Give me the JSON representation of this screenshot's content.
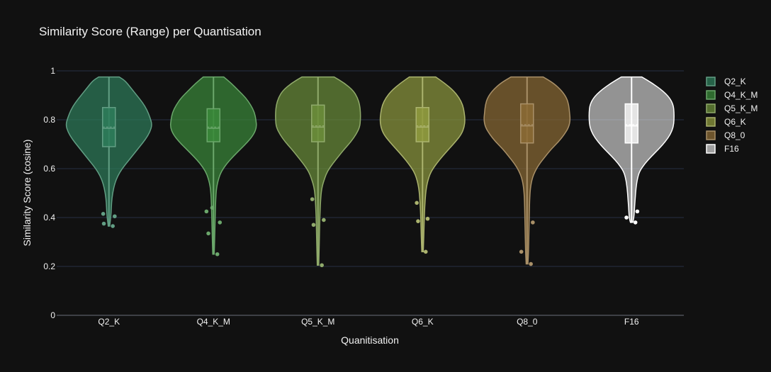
{
  "chart_data": {
    "type": "violin",
    "title": "Similarity Score (Range) per Quantisation",
    "xlabel": "Quanitisation",
    "ylabel": "Similarity Score (cosine)",
    "ylim": [
      0,
      1
    ],
    "yticks": [
      "0",
      "0.2",
      "0.4",
      "0.6",
      "0.8",
      "1"
    ],
    "ytick_values": [
      0,
      0.2,
      0.4,
      0.6,
      0.8,
      1
    ],
    "grid": true,
    "legend_position": "right",
    "categories": [
      "Q2_K",
      "Q4_K_M",
      "Q5_K_M",
      "Q6_K",
      "Q8_0",
      "F16"
    ],
    "series": [
      {
        "name": "Q2_K",
        "color": "#2e7d5b",
        "min": 0.365,
        "max": 0.975,
        "q1": 0.69,
        "median": 0.765,
        "q3": 0.85,
        "mean": 0.77,
        "density": [
          [
            0.975,
            0.14
          ],
          [
            0.96,
            0.22
          ],
          [
            0.93,
            0.3
          ],
          [
            0.9,
            0.38
          ],
          [
            0.87,
            0.46
          ],
          [
            0.84,
            0.52
          ],
          [
            0.81,
            0.56
          ],
          [
            0.78,
            0.59
          ],
          [
            0.75,
            0.56
          ],
          [
            0.72,
            0.5
          ],
          [
            0.69,
            0.42
          ],
          [
            0.66,
            0.34
          ],
          [
            0.63,
            0.26
          ],
          [
            0.6,
            0.18
          ],
          [
            0.57,
            0.12
          ],
          [
            0.54,
            0.08
          ],
          [
            0.5,
            0.05
          ],
          [
            0.46,
            0.035
          ],
          [
            0.42,
            0.03
          ],
          [
            0.39,
            0.02
          ],
          [
            0.365,
            0.01
          ]
        ],
        "outliers": [
          [
            0.415,
            -0.45
          ],
          [
            0.375,
            -0.4
          ],
          [
            0.405,
            0.45
          ],
          [
            0.365,
            0.3
          ]
        ]
      },
      {
        "name": "Q4_K_M",
        "color": "#3a8a3a",
        "min": 0.25,
        "max": 0.975,
        "q1": 0.71,
        "median": 0.765,
        "q3": 0.845,
        "mean": 0.77,
        "density": [
          [
            0.975,
            0.14
          ],
          [
            0.95,
            0.24
          ],
          [
            0.92,
            0.34
          ],
          [
            0.89,
            0.44
          ],
          [
            0.86,
            0.51
          ],
          [
            0.83,
            0.56
          ],
          [
            0.8,
            0.58
          ],
          [
            0.77,
            0.59
          ],
          [
            0.74,
            0.55
          ],
          [
            0.71,
            0.47
          ],
          [
            0.68,
            0.37
          ],
          [
            0.65,
            0.27
          ],
          [
            0.62,
            0.18
          ],
          [
            0.59,
            0.11
          ],
          [
            0.56,
            0.07
          ],
          [
            0.52,
            0.04
          ],
          [
            0.47,
            0.03
          ],
          [
            0.42,
            0.025
          ],
          [
            0.36,
            0.02
          ],
          [
            0.3,
            0.015
          ],
          [
            0.25,
            0.01
          ]
        ],
        "outliers": [
          [
            0.425,
            -0.55
          ],
          [
            0.44,
            -0.1
          ],
          [
            0.38,
            0.5
          ],
          [
            0.335,
            -0.4
          ],
          [
            0.25,
            0.3
          ]
        ]
      },
      {
        "name": "Q5_K_M",
        "color": "#6b8e3a",
        "min": 0.205,
        "max": 0.975,
        "q1": 0.71,
        "median": 0.77,
        "q3": 0.86,
        "mean": 0.775,
        "density": [
          [
            0.975,
            0.22
          ],
          [
            0.95,
            0.36
          ],
          [
            0.92,
            0.48
          ],
          [
            0.89,
            0.54
          ],
          [
            0.86,
            0.57
          ],
          [
            0.83,
            0.58
          ],
          [
            0.8,
            0.58
          ],
          [
            0.77,
            0.57
          ],
          [
            0.74,
            0.52
          ],
          [
            0.71,
            0.45
          ],
          [
            0.68,
            0.36
          ],
          [
            0.65,
            0.28
          ],
          [
            0.62,
            0.2
          ],
          [
            0.59,
            0.13
          ],
          [
            0.56,
            0.09
          ],
          [
            0.52,
            0.05
          ],
          [
            0.47,
            0.035
          ],
          [
            0.4,
            0.025
          ],
          [
            0.33,
            0.02
          ],
          [
            0.26,
            0.015
          ],
          [
            0.205,
            0.01
          ]
        ],
        "outliers": [
          [
            0.475,
            -0.45
          ],
          [
            0.37,
            -0.35
          ],
          [
            0.39,
            0.45
          ],
          [
            0.205,
            0.3
          ]
        ]
      },
      {
        "name": "Q6_K",
        "color": "#8f9a3e",
        "min": 0.26,
        "max": 0.975,
        "q1": 0.71,
        "median": 0.77,
        "q3": 0.85,
        "mean": 0.775,
        "density": [
          [
            0.975,
            0.18
          ],
          [
            0.95,
            0.3
          ],
          [
            0.92,
            0.42
          ],
          [
            0.89,
            0.5
          ],
          [
            0.86,
            0.55
          ],
          [
            0.83,
            0.57
          ],
          [
            0.8,
            0.58
          ],
          [
            0.77,
            0.57
          ],
          [
            0.74,
            0.53
          ],
          [
            0.71,
            0.45
          ],
          [
            0.68,
            0.36
          ],
          [
            0.65,
            0.27
          ],
          [
            0.62,
            0.19
          ],
          [
            0.59,
            0.12
          ],
          [
            0.56,
            0.08
          ],
          [
            0.52,
            0.05
          ],
          [
            0.47,
            0.035
          ],
          [
            0.41,
            0.025
          ],
          [
            0.35,
            0.02
          ],
          [
            0.3,
            0.015
          ],
          [
            0.26,
            0.01
          ]
        ],
        "outliers": [
          [
            0.46,
            -0.45
          ],
          [
            0.385,
            -0.35
          ],
          [
            0.395,
            0.4
          ],
          [
            0.26,
            0.25
          ]
        ]
      },
      {
        "name": "Q8_0",
        "color": "#8c6b35",
        "min": 0.21,
        "max": 0.975,
        "q1": 0.705,
        "median": 0.775,
        "q3": 0.865,
        "mean": 0.78,
        "density": [
          [
            0.975,
            0.22
          ],
          [
            0.95,
            0.36
          ],
          [
            0.92,
            0.47
          ],
          [
            0.89,
            0.54
          ],
          [
            0.86,
            0.57
          ],
          [
            0.83,
            0.58
          ],
          [
            0.8,
            0.59
          ],
          [
            0.77,
            0.57
          ],
          [
            0.74,
            0.51
          ],
          [
            0.71,
            0.43
          ],
          [
            0.68,
            0.33
          ],
          [
            0.65,
            0.25
          ],
          [
            0.62,
            0.17
          ],
          [
            0.59,
            0.11
          ],
          [
            0.56,
            0.07
          ],
          [
            0.52,
            0.045
          ],
          [
            0.47,
            0.035
          ],
          [
            0.4,
            0.03
          ],
          [
            0.33,
            0.025
          ],
          [
            0.26,
            0.02
          ],
          [
            0.21,
            0.012
          ]
        ],
        "outliers": [
          [
            0.26,
            -0.45
          ],
          [
            0.21,
            0.3
          ],
          [
            0.38,
            0.45
          ]
        ]
      },
      {
        "name": "F16",
        "color": "#ffffff",
        "min": 0.38,
        "max": 0.975,
        "q1": 0.705,
        "median": 0.775,
        "q3": 0.865,
        "mean": 0.78,
        "density": [
          [
            0.975,
            0.14
          ],
          [
            0.95,
            0.28
          ],
          [
            0.92,
            0.42
          ],
          [
            0.89,
            0.52
          ],
          [
            0.86,
            0.57
          ],
          [
            0.83,
            0.58
          ],
          [
            0.8,
            0.58
          ],
          [
            0.77,
            0.57
          ],
          [
            0.74,
            0.53
          ],
          [
            0.71,
            0.46
          ],
          [
            0.68,
            0.37
          ],
          [
            0.65,
            0.27
          ],
          [
            0.62,
            0.18
          ],
          [
            0.59,
            0.11
          ],
          [
            0.56,
            0.08
          ],
          [
            0.52,
            0.06
          ],
          [
            0.48,
            0.05
          ],
          [
            0.44,
            0.04
          ],
          [
            0.41,
            0.035
          ],
          [
            0.39,
            0.025
          ],
          [
            0.38,
            0.015
          ]
        ],
        "outliers": [
          [
            0.4,
            -0.4
          ],
          [
            0.425,
            0.45
          ],
          [
            0.38,
            0.3
          ]
        ]
      }
    ]
  }
}
